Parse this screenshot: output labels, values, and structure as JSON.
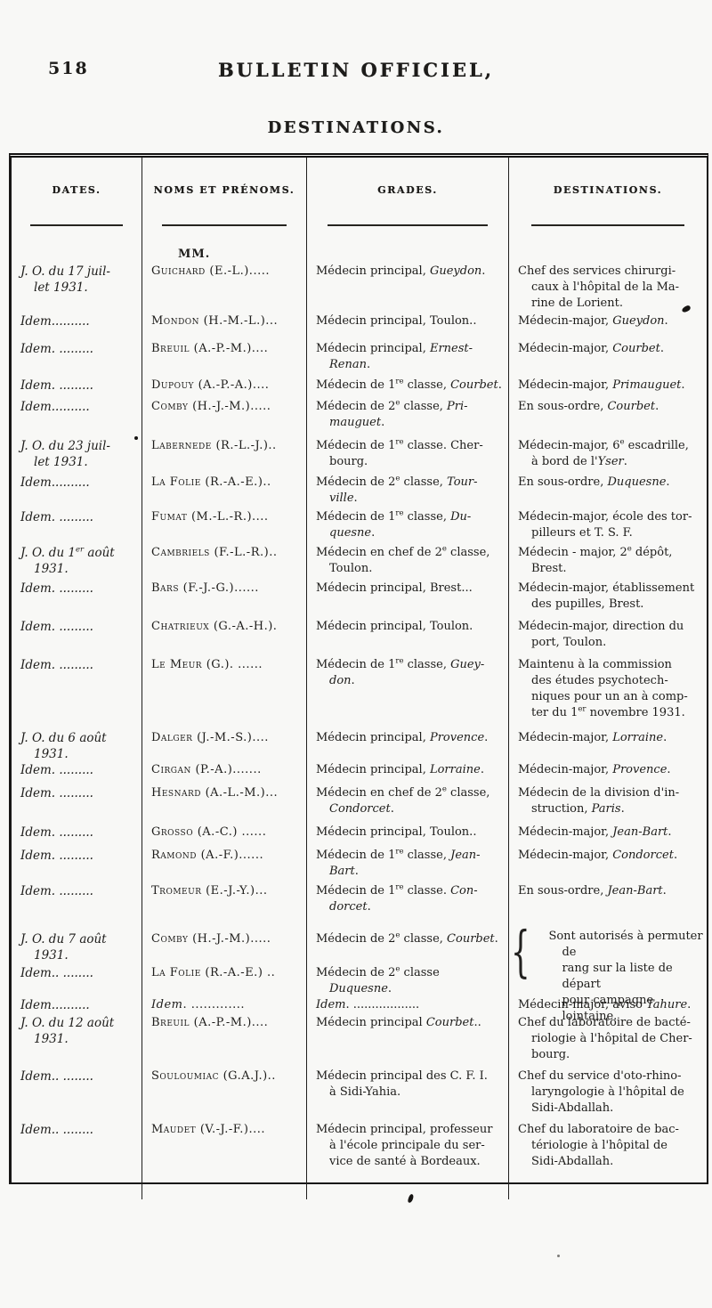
{
  "header": {
    "page_number": "518",
    "journal_title": "BULLETIN OFFICIEL,",
    "section_title": "DESTINATIONS."
  },
  "table": {
    "columns": [
      "DATES.",
      "NOMS ET PRÉNOMS.",
      "GRADES.",
      "DESTINATIONS."
    ],
    "mm_label": "MM.",
    "brace_glyph": "{",
    "rows": [
      {
        "date": "J. O. du 17 juil-<br>let 1931.",
        "name": "Guichard (E.-L.).....",
        "grade": "Médecin principal, <i>Gueydon</i>.",
        "destination": "Chef des services chirurgi-<br>caux à l'hôpital de la Ma-<br>rine de Lorient."
      },
      {
        "date": "<i>Idem</i>..........",
        "name": "Mondon (H.-M.-L.)...",
        "grade": "Médecin principal, Toulon..",
        "destination": "Médecin-major, <i>Gueydon</i>."
      },
      {
        "date": "<i>Idem</i>. .........",
        "name": "Breuil (A.-P.-M.)....",
        "grade": "Médecin principal, <i>Ernest-</i><br><i>Renan</i>.",
        "destination": "Médecin-major, <i>Courbet</i>."
      },
      {
        "date": "<i>Idem</i>. .........",
        "name": "Dupouy (A.-P.-A.)....",
        "grade": "Médecin de 1<sup>re</sup> classe, <i>Courbet</i>.",
        "destination": "Médecin-major, <i>Primauguet</i>."
      },
      {
        "date": "<i>Idem</i>..........",
        "name": "Comby (H.-J.-M.).....",
        "grade": "Médecin de 2<sup>e</sup> classe, <i>Pri-</i><br><i>mauguet</i>.",
        "destination": "En sous-ordre, <i>Courbet</i>."
      },
      {
        "date": "J. O. du 23 juil-<br>let 1931.",
        "name": "Labernede (R.-L.-J.)..",
        "grade": "Médecin de 1<sup>re</sup> classe. Cher-<br>bourg.",
        "destination": "Médecin-major, 6<sup>e</sup> escadrille,<br>à bord de l'<i>Yser</i>."
      },
      {
        "date": "<i>Idem</i>..........",
        "name": "La Folie (R.-A.-E.)..",
        "grade": "Médecin de 2<sup>e</sup> classe, <i>Tour-</i><br><i>ville</i>.",
        "destination": "En sous-ordre, <i>Duquesne</i>."
      },
      {
        "date": "<i>Idem</i>. .........",
        "name": "Fumat (M.-L.-R.)....",
        "grade": "Médecin de 1<sup>re</sup> classe, <i>Du-</i><br><i>quesne</i>.",
        "destination": "Médecin-major, école des tor-<br>pilleurs et T. S. F."
      },
      {
        "date": "J. O. du 1<sup>er</sup> août<br>1931.",
        "name": "Cambriels (F.-L.-R.)..",
        "grade": "Médecin en chef de 2<sup>e</sup> classe,<br>Toulon.",
        "destination": "Médecin - major, 2<sup>e</sup> dépôt,<br>Brest."
      },
      {
        "date": "<i>Idem</i>. .........",
        "name": "Bars (F.-J.-G.)......",
        "grade": "Médecin principal, Brest...",
        "destination": "Médecin-major, établissement<br>des pupilles, Brest."
      },
      {
        "date": "<i>Idem</i>. .........",
        "name": "Chatrieux (G.-A.-H.).",
        "grade": "Médecin principal, Toulon.",
        "destination": "Médecin-major, direction du<br>port, Toulon."
      },
      {
        "date": "<i>Idem</i>. .........",
        "name": "Le Meur (G.). ......",
        "grade": "Médecin de 1<sup>re</sup> classe, <i>Guey-</i><br><i>don</i>.",
        "destination": "Maintenu à la commission<br>des études psychotech-<br>niques pour un an à comp-<br>ter du 1<sup>er</sup> novembre 1931."
      },
      {
        "date": "J. O. du 6 août<br>1931.",
        "name": "Dalger (J.-M.-S.)....",
        "grade": "Médecin principal, <i>Provence</i>.",
        "destination": "Médecin-major, <i>Lorraine</i>."
      },
      {
        "date": "<i>Idem</i>. .........",
        "name": "Cirgan (P.-A.).......",
        "grade": "Médecin principal, <i>Lorraine</i>.",
        "destination": "Médecin-major, <i>Provence</i>."
      },
      {
        "date": "<i>Idem</i>. .........",
        "name": "Hesnard (A.-L.-M.)...",
        "grade": "Médecin en chef de 2<sup>e</sup> classe,<br><i>Condorcet</i>.",
        "destination": "Médecin de la division d'in-<br>struction, <i>Paris</i>."
      },
      {
        "date": "<i>Idem</i>. .........",
        "name": "Grosso (A.-C.) ......",
        "grade": "Médecin principal, Toulon..",
        "destination": "Médecin-major, <i>Jean-Bart</i>."
      },
      {
        "date": "<i>Idem</i>. .........",
        "name": "Ramond (A.-F.)......",
        "grade": "Médecin de 1<sup>re</sup> classe, <i>Jean-</i><br><i>Bart</i>.",
        "destination": "Médecin-major, <i>Condorcet</i>."
      },
      {
        "date": "<i>Idem</i>. .........",
        "name": "Tromeur (E.-J.-Y.)...",
        "grade": "Médecin de 1<sup>re</sup> classe. <i>Con-</i><br><i>dorcet</i>.",
        "destination": "En sous-ordre, <i>Jean-Bart</i>."
      },
      {
        "date": "J. O. du 7 août<br>1931.",
        "name": "Comby (H.-J.-M.).....",
        "grade": "Médecin de 2<sup>e</sup> classe, <i>Courbet</i>.",
        "destination": "Sont autorisés à permuter de<br>rang sur la liste de départ<br>pour campagne lointaine."
      },
      {
        "date": "<i>Idem</i>.. ........",
        "name": "La Folie (R.-A.-E.) ..",
        "grade": "Médecin de 2<sup>e</sup> classe <i>Duquesne</i>.",
        "destination": ""
      },
      {
        "date": "<i>Idem</i>..........",
        "name": "<i>Idem</i>. .............",
        "grade": "<i>Idem</i>. ..................",
        "destination": "Médecin-major, aviso <i>Tahure</i>."
      },
      {
        "date": "J. O. du 12 août<br>1931.",
        "name": "Breuil (A.-P.-M.)....",
        "grade": "Médecin principal <i>Courbet</i>..",
        "destination": "Chef du laboratoire de bacté-<br>riologie à l'hôpital de Cher-<br>bourg."
      },
      {
        "date": "<i>Idem</i>.. ........",
        "name": "Souloumiac (G.A.J.)..",
        "grade": "Médecin principal des C. F. I.<br>à Sidi-Yahia.",
        "destination": "Chef du service d'oto-rhino-<br>laryngologie à l'hôpital de<br>Sidi-Abdallah."
      },
      {
        "date": "<i>Idem</i>.. ........",
        "name": "Maudet (V.-J.-F.)....",
        "grade": "Médecin principal, professeur<br>à l'école principale du ser-<br>vice de santé à Bordeaux.",
        "destination": "Chef du laboratoire de bac-<br>tériologie à l'hôpital de<br>Sidi-Abdallah."
      }
    ]
  }
}
